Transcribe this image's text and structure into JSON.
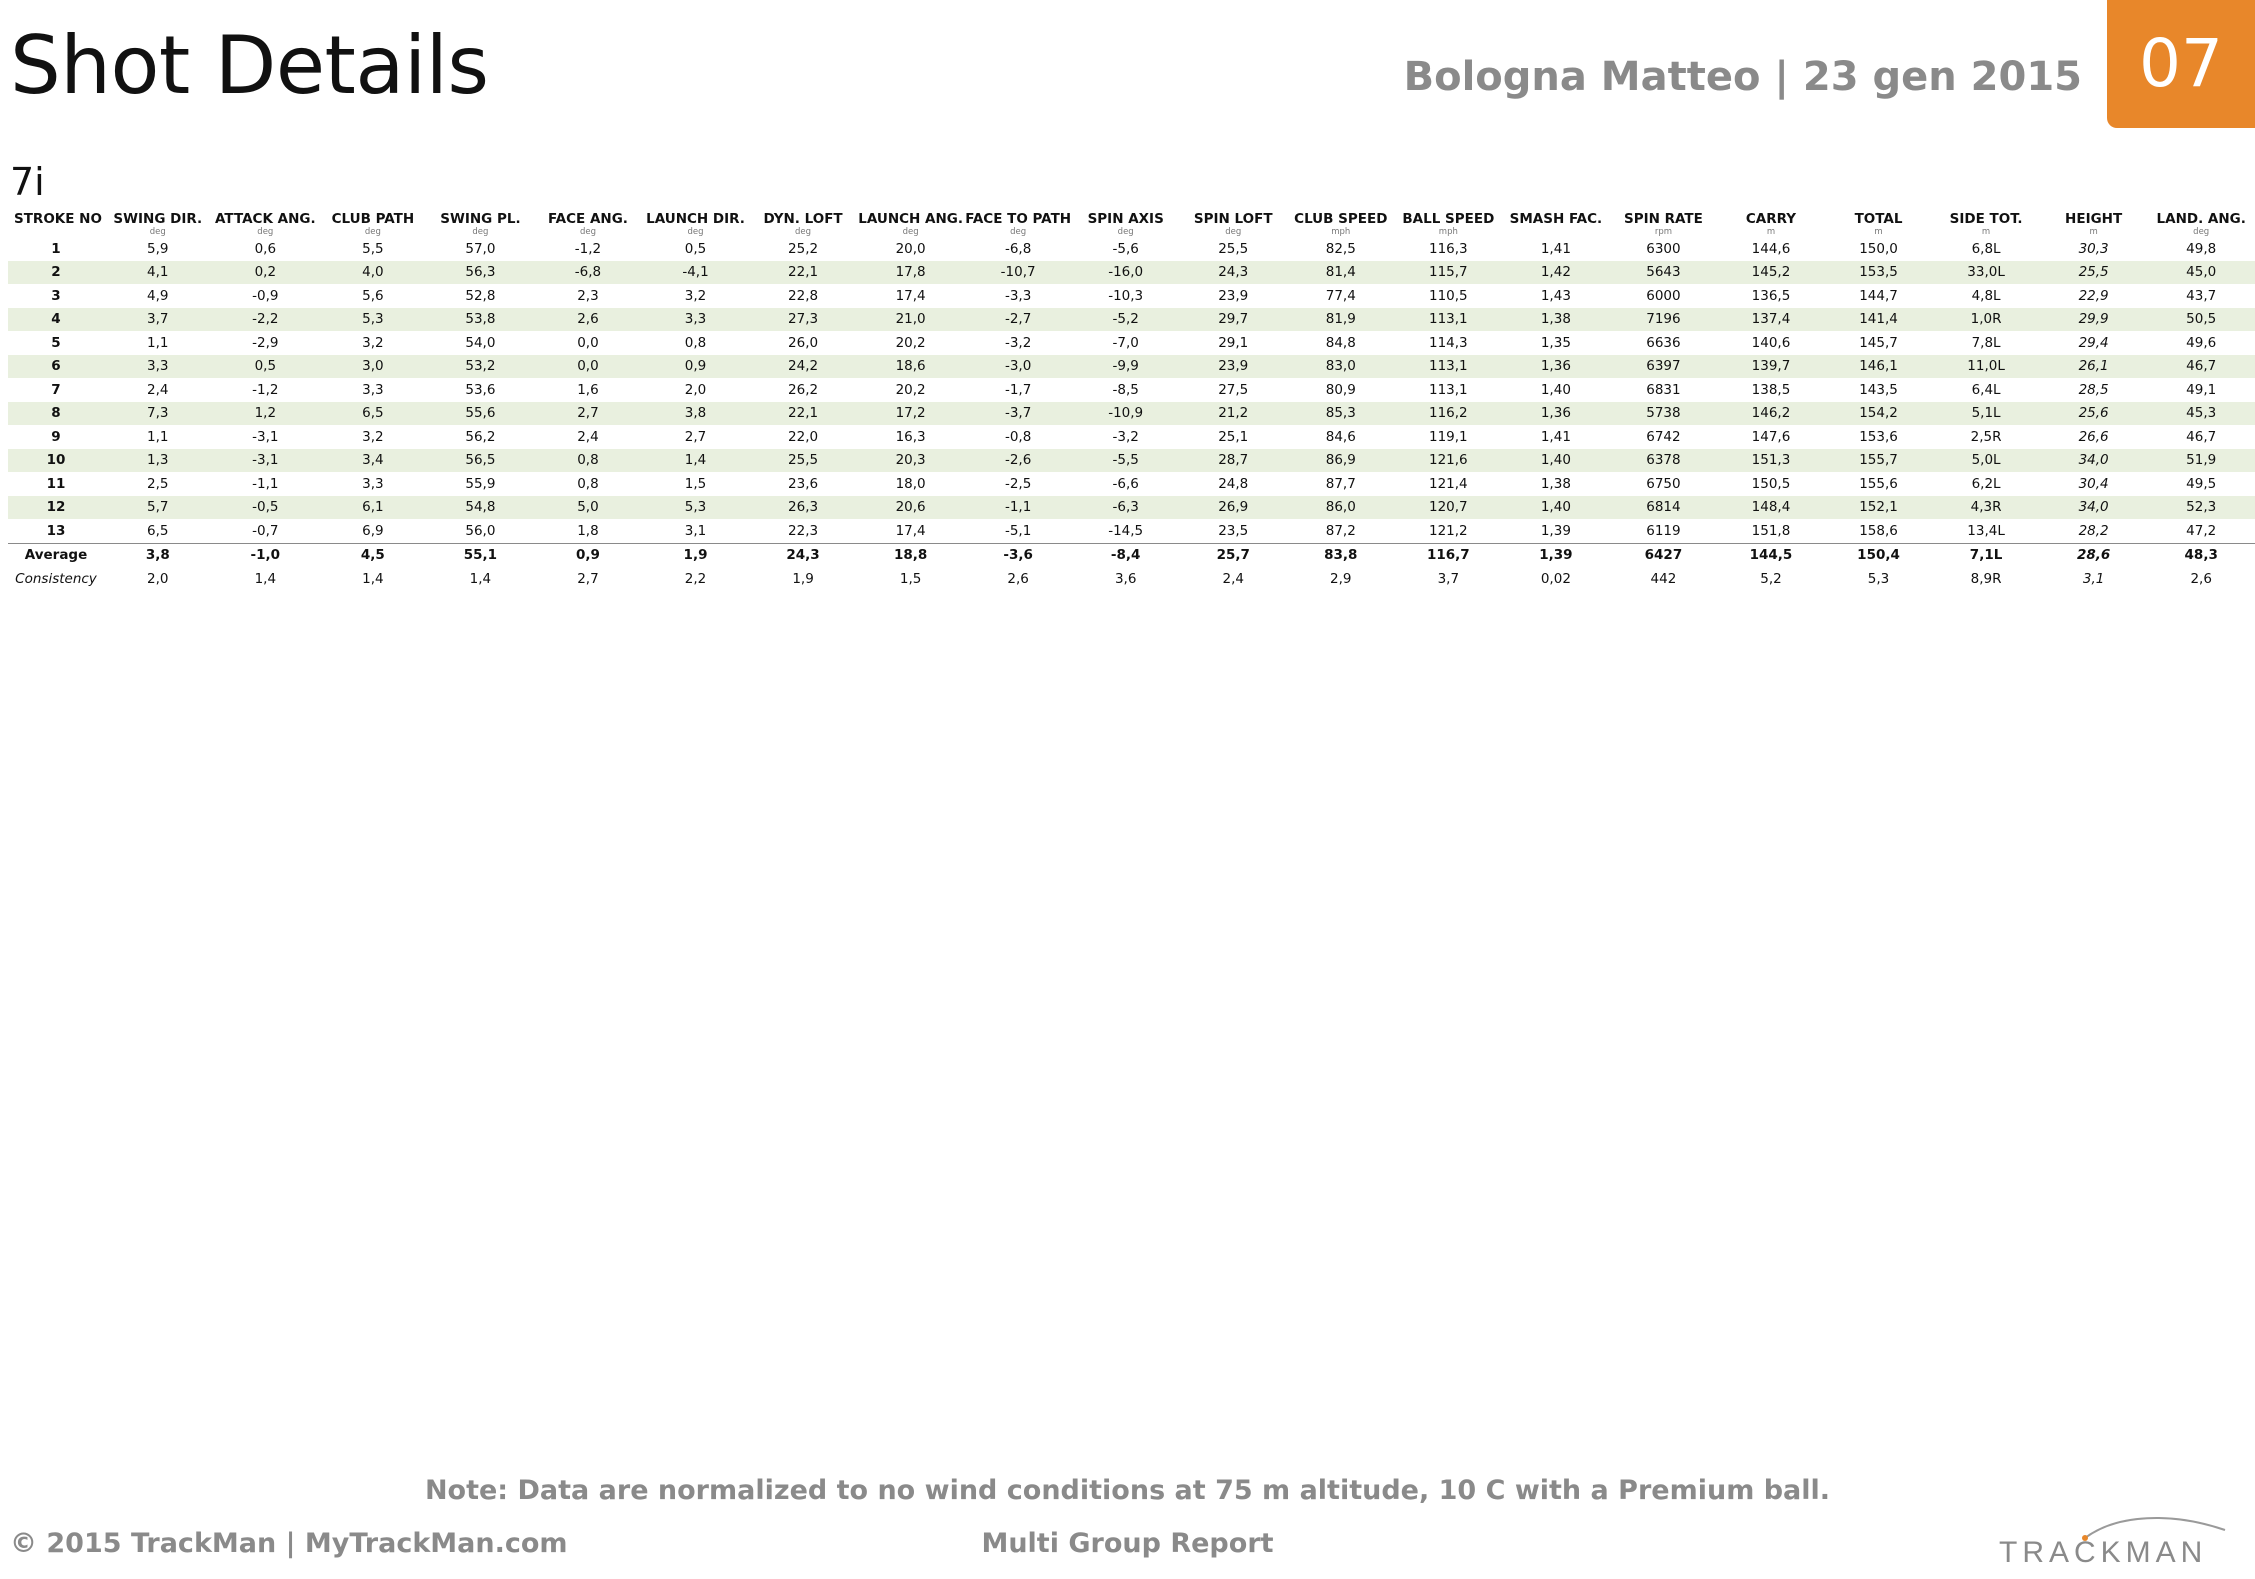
{
  "header": {
    "title": "Shot Details",
    "meta": "Bologna Matteo | 23 gen 2015",
    "page_number": "07",
    "accent_color": "#e8872a"
  },
  "club": "7i",
  "table": {
    "columns": [
      {
        "label": "STROKE NO",
        "unit": ""
      },
      {
        "label": "SWING DIR.",
        "unit": "deg"
      },
      {
        "label": "ATTACK ANG.",
        "unit": "deg"
      },
      {
        "label": "CLUB PATH",
        "unit": "deg"
      },
      {
        "label": "SWING PL.",
        "unit": "deg"
      },
      {
        "label": "FACE ANG.",
        "unit": "deg"
      },
      {
        "label": "LAUNCH DIR.",
        "unit": "deg"
      },
      {
        "label": "DYN. LOFT",
        "unit": "deg"
      },
      {
        "label": "LAUNCH ANG.",
        "unit": "deg"
      },
      {
        "label": "FACE TO PATH",
        "unit": "deg"
      },
      {
        "label": "SPIN AXIS",
        "unit": "deg"
      },
      {
        "label": "SPIN LOFT",
        "unit": "deg"
      },
      {
        "label": "CLUB SPEED",
        "unit": "mph"
      },
      {
        "label": "BALL SPEED",
        "unit": "mph"
      },
      {
        "label": "SMASH FAC.",
        "unit": ""
      },
      {
        "label": "SPIN RATE",
        "unit": "rpm"
      },
      {
        "label": "CARRY",
        "unit": "m"
      },
      {
        "label": "TOTAL",
        "unit": "m"
      },
      {
        "label": "SIDE TOT.",
        "unit": "m"
      },
      {
        "label": "HEIGHT",
        "unit": "m"
      },
      {
        "label": "LAND. ANG.",
        "unit": "deg"
      }
    ],
    "rows": [
      [
        "1",
        "5,9",
        "0,6",
        "5,5",
        "57,0",
        "-1,2",
        "0,5",
        "25,2",
        "20,0",
        "-6,8",
        "-5,6",
        "25,5",
        "82,5",
        "116,3",
        "1,41",
        "6300",
        "144,6",
        "150,0",
        "6,8L",
        "30,3",
        "49,8"
      ],
      [
        "2",
        "4,1",
        "0,2",
        "4,0",
        "56,3",
        "-6,8",
        "-4,1",
        "22,1",
        "17,8",
        "-10,7",
        "-16,0",
        "24,3",
        "81,4",
        "115,7",
        "1,42",
        "5643",
        "145,2",
        "153,5",
        "33,0L",
        "25,5",
        "45,0"
      ],
      [
        "3",
        "4,9",
        "-0,9",
        "5,6",
        "52,8",
        "2,3",
        "3,2",
        "22,8",
        "17,4",
        "-3,3",
        "-10,3",
        "23,9",
        "77,4",
        "110,5",
        "1,43",
        "6000",
        "136,5",
        "144,7",
        "4,8L",
        "22,9",
        "43,7"
      ],
      [
        "4",
        "3,7",
        "-2,2",
        "5,3",
        "53,8",
        "2,6",
        "3,3",
        "27,3",
        "21,0",
        "-2,7",
        "-5,2",
        "29,7",
        "81,9",
        "113,1",
        "1,38",
        "7196",
        "137,4",
        "141,4",
        "1,0R",
        "29,9",
        "50,5"
      ],
      [
        "5",
        "1,1",
        "-2,9",
        "3,2",
        "54,0",
        "0,0",
        "0,8",
        "26,0",
        "20,2",
        "-3,2",
        "-7,0",
        "29,1",
        "84,8",
        "114,3",
        "1,35",
        "6636",
        "140,6",
        "145,7",
        "7,8L",
        "29,4",
        "49,6"
      ],
      [
        "6",
        "3,3",
        "0,5",
        "3,0",
        "53,2",
        "0,0",
        "0,9",
        "24,2",
        "18,6",
        "-3,0",
        "-9,9",
        "23,9",
        "83,0",
        "113,1",
        "1,36",
        "6397",
        "139,7",
        "146,1",
        "11,0L",
        "26,1",
        "46,7"
      ],
      [
        "7",
        "2,4",
        "-1,2",
        "3,3",
        "53,6",
        "1,6",
        "2,0",
        "26,2",
        "20,2",
        "-1,7",
        "-8,5",
        "27,5",
        "80,9",
        "113,1",
        "1,40",
        "6831",
        "138,5",
        "143,5",
        "6,4L",
        "28,5",
        "49,1"
      ],
      [
        "8",
        "7,3",
        "1,2",
        "6,5",
        "55,6",
        "2,7",
        "3,8",
        "22,1",
        "17,2",
        "-3,7",
        "-10,9",
        "21,2",
        "85,3",
        "116,2",
        "1,36",
        "5738",
        "146,2",
        "154,2",
        "5,1L",
        "25,6",
        "45,3"
      ],
      [
        "9",
        "1,1",
        "-3,1",
        "3,2",
        "56,2",
        "2,4",
        "2,7",
        "22,0",
        "16,3",
        "-0,8",
        "-3,2",
        "25,1",
        "84,6",
        "119,1",
        "1,41",
        "6742",
        "147,6",
        "153,6",
        "2,5R",
        "26,6",
        "46,7"
      ],
      [
        "10",
        "1,3",
        "-3,1",
        "3,4",
        "56,5",
        "0,8",
        "1,4",
        "25,5",
        "20,3",
        "-2,6",
        "-5,5",
        "28,7",
        "86,9",
        "121,6",
        "1,40",
        "6378",
        "151,3",
        "155,7",
        "5,0L",
        "34,0",
        "51,9"
      ],
      [
        "11",
        "2,5",
        "-1,1",
        "3,3",
        "55,9",
        "0,8",
        "1,5",
        "23,6",
        "18,0",
        "-2,5",
        "-6,6",
        "24,8",
        "87,7",
        "121,4",
        "1,38",
        "6750",
        "150,5",
        "155,6",
        "6,2L",
        "30,4",
        "49,5"
      ],
      [
        "12",
        "5,7",
        "-0,5",
        "6,1",
        "54,8",
        "5,0",
        "5,3",
        "26,3",
        "20,6",
        "-1,1",
        "-6,3",
        "26,9",
        "86,0",
        "120,7",
        "1,40",
        "6814",
        "148,4",
        "152,1",
        "4,3R",
        "34,0",
        "52,3"
      ],
      [
        "13",
        "6,5",
        "-0,7",
        "6,9",
        "56,0",
        "1,8",
        "3,1",
        "22,3",
        "17,4",
        "-5,1",
        "-14,5",
        "23,5",
        "87,2",
        "121,2",
        "1,39",
        "6119",
        "151,8",
        "158,6",
        "13,4L",
        "28,2",
        "47,2"
      ]
    ],
    "average": [
      "Average",
      "3,8",
      "-1,0",
      "4,5",
      "55,1",
      "0,9",
      "1,9",
      "24,3",
      "18,8",
      "-3,6",
      "-8,4",
      "25,7",
      "83,8",
      "116,7",
      "1,39",
      "6427",
      "144,5",
      "150,4",
      "7,1L",
      "28,6",
      "48,3"
    ],
    "consistency": [
      "Consistency",
      "2,0",
      "1,4",
      "1,4",
      "1,4",
      "2,7",
      "2,2",
      "1,9",
      "1,5",
      "2,6",
      "3,6",
      "2,4",
      "2,9",
      "3,7",
      "0,02",
      "442",
      "5,2",
      "5,3",
      "8,9R",
      "3,1",
      "2,6"
    ],
    "row_stripe_color": "#e9f0df"
  },
  "footer": {
    "note": "Note: Data are normalized to no wind conditions at 75 m altitude, 10 C with a Premium ball.",
    "copyright": "© 2015 TrackMan | MyTrackMan.com",
    "report_name": "Multi Group Report",
    "logo_text": "TRACKMAN",
    "logo_icon": "trackman-logo-icon"
  }
}
